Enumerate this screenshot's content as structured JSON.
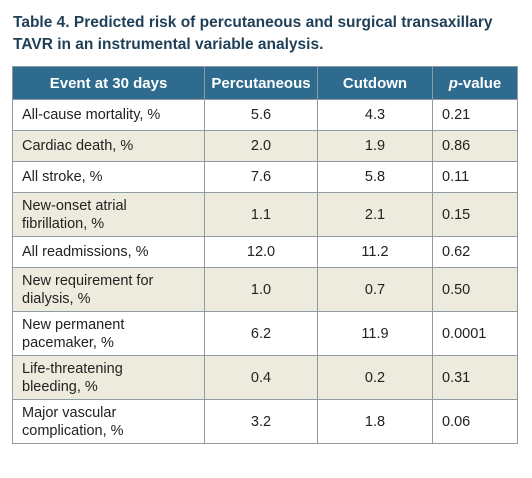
{
  "caption": {
    "line1": "Table 4. Predicted risk of percutaneous and surgical transaxillary",
    "line2": "TAVR in an instrumental variable analysis."
  },
  "table": {
    "headers": {
      "event": "Event at 30 days",
      "percutaneous": "Percutaneous",
      "cutdown": "Cutdown",
      "pvalue_italic": "p",
      "pvalue_rest": "-value"
    },
    "rows": [
      {
        "event": "All-cause mortality, %",
        "percutaneous": "5.6",
        "cutdown": "4.3",
        "pvalue": "0.21"
      },
      {
        "event": "Cardiac death, %",
        "percutaneous": "2.0",
        "cutdown": "1.9",
        "pvalue": "0.86"
      },
      {
        "event": "All stroke, %",
        "percutaneous": "7.6",
        "cutdown": "5.8",
        "pvalue": "0.11"
      },
      {
        "event_line1": "New-onset atrial",
        "event_line2": "fibrillation, %",
        "percutaneous": "1.1",
        "cutdown": "2.1",
        "pvalue": "0.15"
      },
      {
        "event": "All readmissions, %",
        "percutaneous": "12.0",
        "cutdown": "11.2",
        "pvalue": "0.62"
      },
      {
        "event_line1": "New requirement for",
        "event_line2": "dialysis, %",
        "percutaneous": "1.0",
        "cutdown": "0.7",
        "pvalue": "0.50"
      },
      {
        "event_line1": "New permanent",
        "event_line2": "pacemaker, %",
        "percutaneous": "6.2",
        "cutdown": "11.9",
        "pvalue": "0.0001"
      },
      {
        "event_line1": "Life-threatening",
        "event_line2": "bleeding, %",
        "percutaneous": "0.4",
        "cutdown": "0.2",
        "pvalue": "0.31"
      },
      {
        "event_line1": "Major vascular",
        "event_line2": "complication, %",
        "percutaneous": "3.2",
        "cutdown": "1.8",
        "pvalue": "0.06"
      }
    ]
  },
  "colors": {
    "header_bg": "#2e6b8e",
    "row_shade": "#ecebdd",
    "caption_text": "#1f3f57"
  }
}
